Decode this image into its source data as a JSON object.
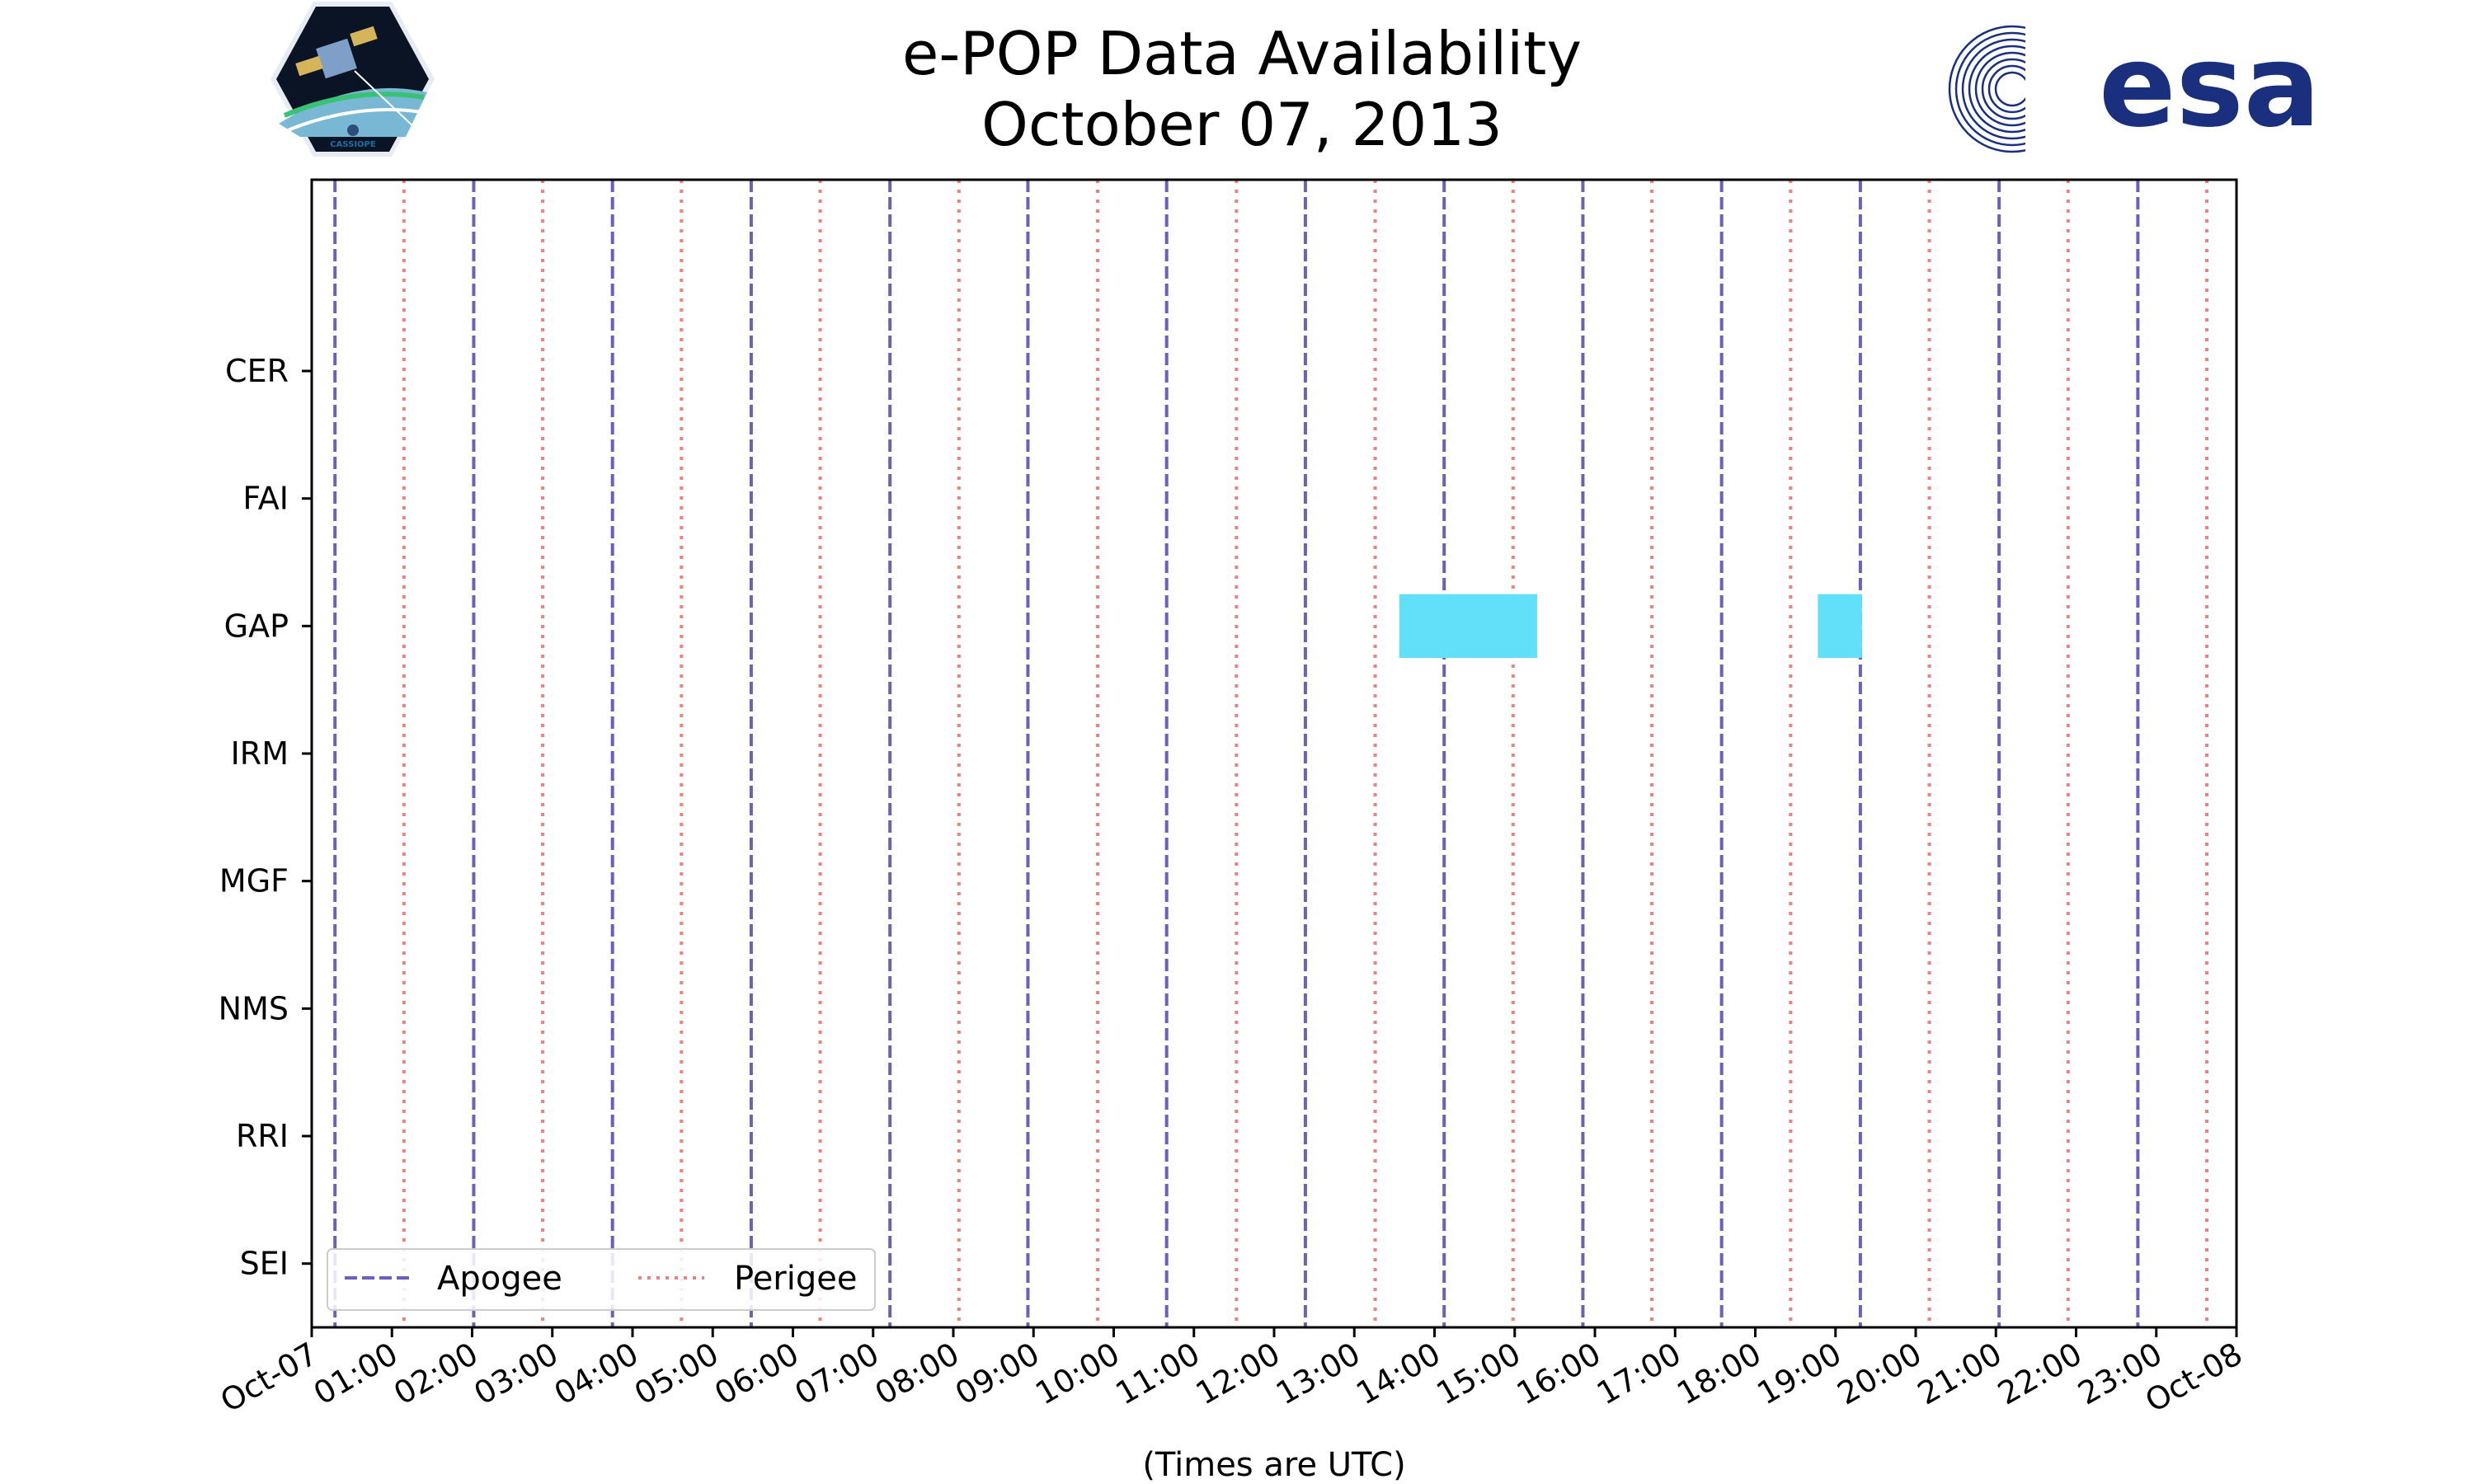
{
  "logos": {
    "left": {
      "text": "CASSIOPE"
    },
    "right": {
      "text": "esa",
      "color": "#1a2f7e"
    }
  },
  "chart_data": {
    "type": "timeline",
    "title_line1": "e-POP Data Availability",
    "title_line2": "October 07, 2013",
    "xlabel": "(Times are UTC)",
    "x_range_hours": [
      0,
      24
    ],
    "x_ticks": [
      {
        "h": 0,
        "label": "Oct-07"
      },
      {
        "h": 1,
        "label": "01:00"
      },
      {
        "h": 2,
        "label": "02:00"
      },
      {
        "h": 3,
        "label": "03:00"
      },
      {
        "h": 4,
        "label": "04:00"
      },
      {
        "h": 5,
        "label": "05:00"
      },
      {
        "h": 6,
        "label": "06:00"
      },
      {
        "h": 7,
        "label": "07:00"
      },
      {
        "h": 8,
        "label": "08:00"
      },
      {
        "h": 9,
        "label": "09:00"
      },
      {
        "h": 10,
        "label": "10:00"
      },
      {
        "h": 11,
        "label": "11:00"
      },
      {
        "h": 12,
        "label": "12:00"
      },
      {
        "h": 13,
        "label": "13:00"
      },
      {
        "h": 14,
        "label": "14:00"
      },
      {
        "h": 15,
        "label": "15:00"
      },
      {
        "h": 16,
        "label": "16:00"
      },
      {
        "h": 17,
        "label": "17:00"
      },
      {
        "h": 18,
        "label": "18:00"
      },
      {
        "h": 19,
        "label": "19:00"
      },
      {
        "h": 20,
        "label": "20:00"
      },
      {
        "h": 21,
        "label": "21:00"
      },
      {
        "h": 22,
        "label": "22:00"
      },
      {
        "h": 23,
        "label": "23:00"
      },
      {
        "h": 24,
        "label": "Oct-08"
      }
    ],
    "instruments": [
      "CER",
      "FAI",
      "GAP",
      "IRM",
      "MGF",
      "NMS",
      "RRI",
      "SEI"
    ],
    "y_range": [
      -1.5,
      7.5
    ],
    "apogee_hours": [
      0.29,
      2.02,
      3.75,
      5.48,
      7.21,
      8.93,
      10.66,
      12.39,
      14.12,
      15.85,
      17.58,
      19.31,
      21.04,
      22.77
    ],
    "perigee_hours": [
      1.15,
      2.88,
      4.61,
      6.34,
      8.07,
      9.8,
      11.53,
      13.26,
      14.98,
      16.71,
      18.44,
      20.17,
      21.9,
      23.63
    ],
    "availability": [
      {
        "instrument": "GAP",
        "start": 13.56,
        "end": 15.28
      },
      {
        "instrument": "GAP",
        "start": 18.78,
        "end": 19.33
      }
    ],
    "legend": [
      {
        "label": "Apogee",
        "style": "dashed",
        "color": "#6a62b8"
      },
      {
        "label": "Perigee",
        "style": "dotted",
        "color": "#f08080"
      }
    ],
    "colors": {
      "apogee": "#6a62b8",
      "perigee": "#f08080",
      "availability": "#62dff9"
    }
  }
}
